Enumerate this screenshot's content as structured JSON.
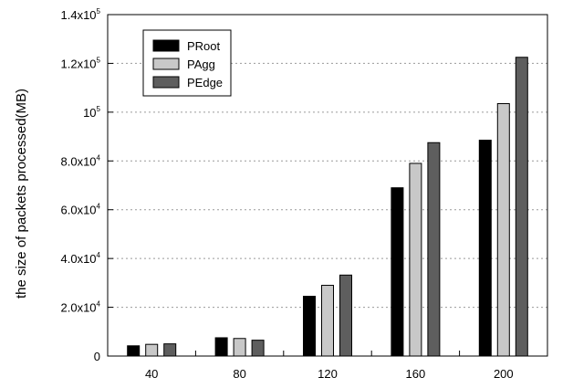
{
  "chart_data": {
    "type": "bar",
    "title": "",
    "xlabel": "",
    "ylabel": "the size of packets processed(MB)",
    "categories": [
      "40",
      "80",
      "120",
      "160",
      "200"
    ],
    "ylim": [
      0,
      140000
    ],
    "yticks": [
      {
        "value": 0,
        "base": "0",
        "sup": ""
      },
      {
        "value": 20000,
        "base": "2.0x10",
        "sup": "4"
      },
      {
        "value": 40000,
        "base": "4.0x10",
        "sup": "4"
      },
      {
        "value": 60000,
        "base": "6.0x10",
        "sup": "4"
      },
      {
        "value": 80000,
        "base": "8.0x10",
        "sup": "4"
      },
      {
        "value": 100000,
        "base": "10",
        "sup": "5"
      },
      {
        "value": 120000,
        "base": "1.2x10",
        "sup": "5"
      },
      {
        "value": 140000,
        "base": "1.4x10",
        "sup": "5"
      }
    ],
    "grid": "horizontal dotted",
    "legend_position": "top-left",
    "series": [
      {
        "name": "PRoot",
        "color": "#000000",
        "values": [
          4200,
          7500,
          24500,
          69000,
          88500
        ]
      },
      {
        "name": "PAgg",
        "color": "#c8c8c8",
        "values": [
          4800,
          7200,
          29000,
          79000,
          103500
        ]
      },
      {
        "name": "PEdge",
        "color": "#5e5e5e",
        "values": [
          5000,
          6500,
          33200,
          87500,
          122500
        ]
      }
    ]
  }
}
